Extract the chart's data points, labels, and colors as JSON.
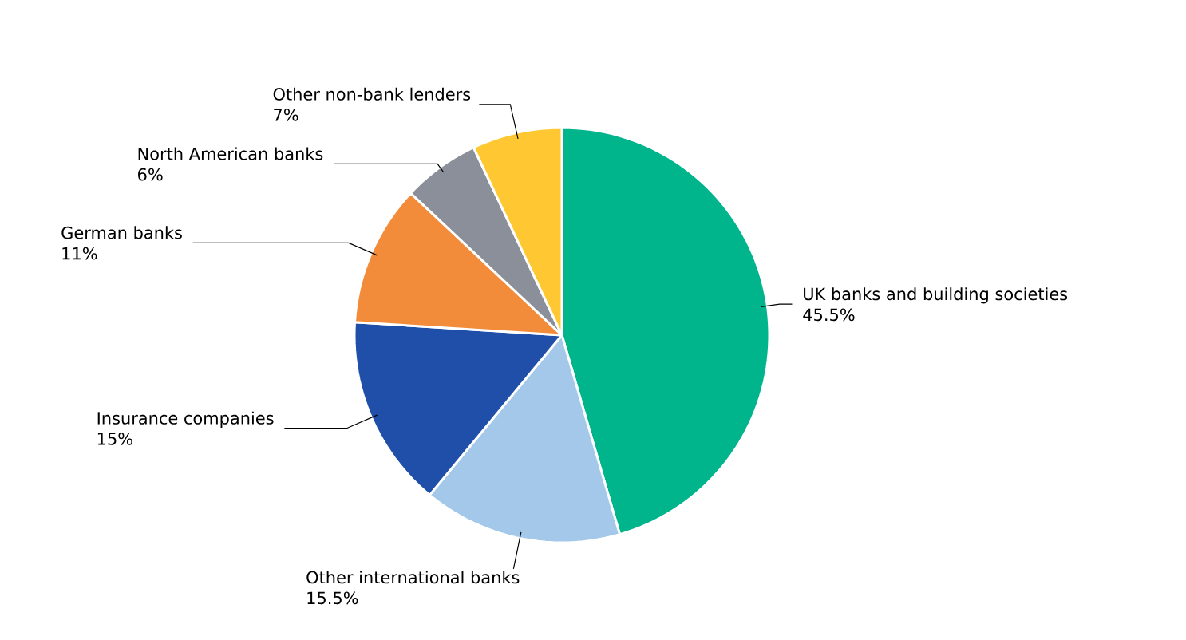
{
  "chart_data": {
    "type": "pie",
    "categories": [
      "UK banks and building societies",
      "Other international banks",
      "Insurance companies",
      "German banks",
      "North American banks",
      "Other non-bank lenders"
    ],
    "values": [
      45.5,
      15.5,
      15,
      11,
      6,
      7
    ],
    "value_labels": [
      "45.5%",
      "15.5%",
      "15%",
      "11%",
      "6%",
      "7%"
    ],
    "colors": [
      "#00b48c",
      "#a3c8ea",
      "#1f4fa8",
      "#f28c3a",
      "#8a8f99",
      "#ffc832"
    ]
  }
}
